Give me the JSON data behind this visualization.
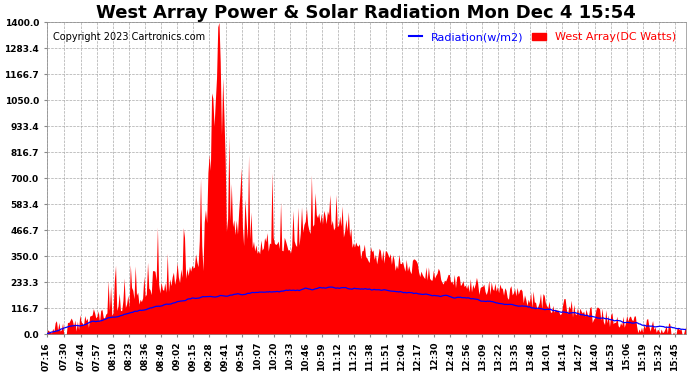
{
  "title": "West Array Power & Solar Radiation Mon Dec 4 15:54",
  "copyright": "Copyright 2023 Cartronics.com",
  "legend_radiation": "Radiation(w/m2)",
  "legend_west": "West Array(DC Watts)",
  "radiation_color": "blue",
  "west_color": "red",
  "background_color": "#ffffff",
  "plot_background": "#ffffff",
  "grid_color": "#aaaaaa",
  "yticks": [
    0.0,
    116.7,
    233.3,
    350.0,
    466.7,
    583.4,
    700.0,
    816.7,
    933.4,
    1050.0,
    1166.7,
    1283.4,
    1400.0
  ],
  "ymax": 1400.0,
  "ymin": 0.0,
  "xtick_labels": [
    "07:16",
    "07:30",
    "07:44",
    "07:57",
    "08:10",
    "08:23",
    "08:36",
    "08:49",
    "09:02",
    "09:15",
    "09:28",
    "09:41",
    "09:54",
    "10:07",
    "10:20",
    "10:33",
    "10:46",
    "10:59",
    "11:12",
    "11:25",
    "11:38",
    "11:51",
    "12:04",
    "12:17",
    "12:30",
    "12:43",
    "12:56",
    "13:09",
    "13:22",
    "13:35",
    "13:48",
    "14:01",
    "14:14",
    "14:27",
    "14:40",
    "14:53",
    "15:06",
    "15:19",
    "15:32",
    "15:45"
  ],
  "title_fontsize": 13,
  "copyright_fontsize": 7,
  "legend_fontsize": 8,
  "tick_fontsize": 6.5
}
